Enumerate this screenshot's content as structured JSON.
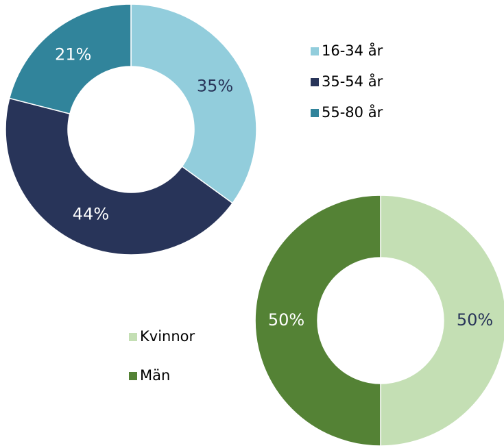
{
  "chart_data": [
    {
      "type": "donut",
      "categories": [
        "16-34 år",
        "35-54 år",
        "55-80 år"
      ],
      "values": [
        35,
        44,
        21
      ],
      "value_labels": [
        "35%",
        "44%",
        "21%"
      ],
      "colors": [
        "#92cddc",
        "#283459",
        "#31849b"
      ]
    },
    {
      "type": "donut",
      "categories": [
        "Kvinnor",
        "Män"
      ],
      "values": [
        50,
        50
      ],
      "value_labels": [
        "50%",
        "50%"
      ],
      "colors": [
        "#c4dfb4",
        "#548235"
      ]
    }
  ]
}
